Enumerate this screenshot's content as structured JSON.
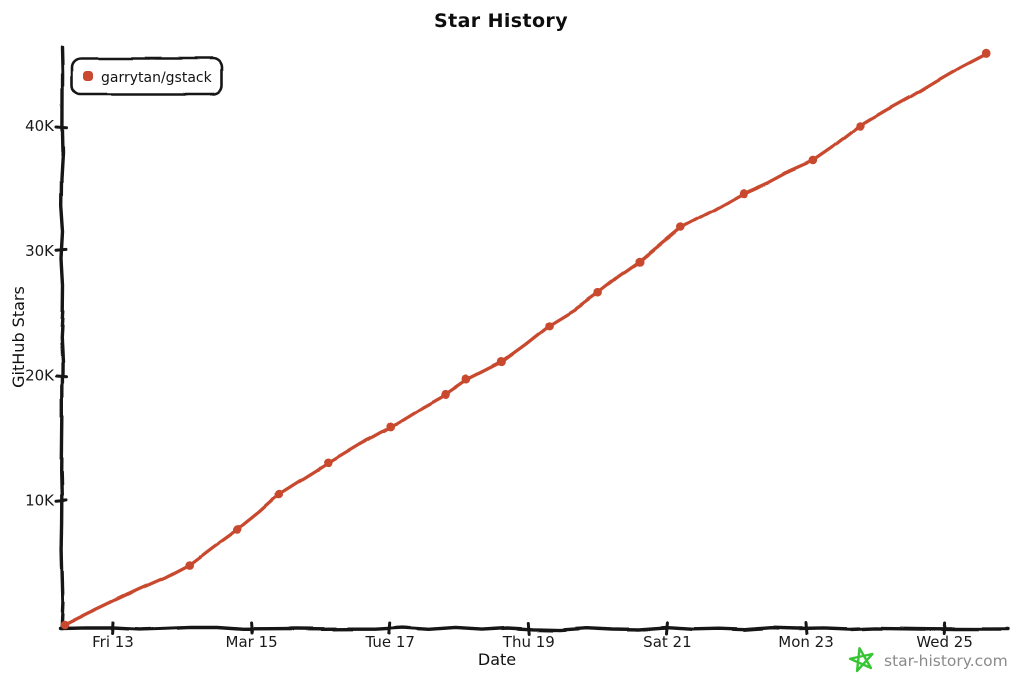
{
  "watermark": {
    "site": "star-history.com",
    "icon": "star-doodle-icon",
    "icon_color": "#36c535",
    "text_color": "#8b8b8b"
  },
  "legend": {
    "position": "top-left"
  },
  "colors": {
    "series": "#c8492f",
    "axis": "#141414",
    "background": "#ffffff"
  },
  "chart_data": {
    "type": "line",
    "title": "Star History",
    "xlabel": "Date",
    "ylabel": "GitHub Stars",
    "style": "xkcd-hand-drawn",
    "grid": false,
    "legend_position": "top-left",
    "series_color": "#c8492f",
    "x_unit": "day of March",
    "x_tick_days": [
      13,
      15,
      17,
      19,
      21,
      23,
      25
    ],
    "x_tick_labels": [
      "Fri 13",
      "Mar 15",
      "Tue 17",
      "Thu 19",
      "Sat 21",
      "Mon 23",
      "Wed 25"
    ],
    "y_tick_values": [
      10000,
      20000,
      30000,
      40000
    ],
    "y_tick_labels": [
      "10K",
      "20K",
      "30K",
      "40K"
    ],
    "xlim_days": [
      12.2,
      26.1
    ],
    "ylim": [
      0,
      46600
    ],
    "series": [
      {
        "name": "garrytan/gstack",
        "points": [
          {
            "day": 12.3,
            "stars": 0
          },
          {
            "day": 14.1,
            "stars": 4800
          },
          {
            "day": 14.8,
            "stars": 7700
          },
          {
            "day": 15.4,
            "stars": 10500
          },
          {
            "day": 16.1,
            "stars": 13000
          },
          {
            "day": 17.0,
            "stars": 15900
          },
          {
            "day": 17.8,
            "stars": 18500
          },
          {
            "day": 18.1,
            "stars": 19700
          },
          {
            "day": 18.6,
            "stars": 21100
          },
          {
            "day": 19.3,
            "stars": 24000
          },
          {
            "day": 20.0,
            "stars": 26600
          },
          {
            "day": 20.6,
            "stars": 29100
          },
          {
            "day": 21.2,
            "stars": 31900
          },
          {
            "day": 22.1,
            "stars": 34600
          },
          {
            "day": 23.1,
            "stars": 37200
          },
          {
            "day": 23.8,
            "stars": 40000
          },
          {
            "day": 25.6,
            "stars": 45800
          }
        ]
      }
    ]
  }
}
